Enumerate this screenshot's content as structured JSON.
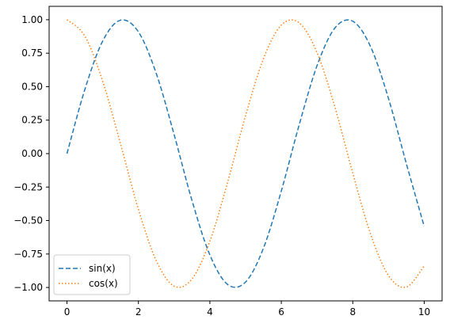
{
  "chart_data": {
    "type": "line",
    "title": "",
    "xlabel": "",
    "ylabel": "",
    "xlim": [
      -0.5,
      10.5
    ],
    "ylim": [
      -1.1,
      1.1
    ],
    "grid": false,
    "legend_position": "lower-left",
    "x_ticks": [
      0,
      2,
      4,
      6,
      8,
      10
    ],
    "x_tick_labels": [
      "0",
      "2",
      "4",
      "6",
      "8",
      "10"
    ],
    "y_ticks": [
      -1.0,
      -0.75,
      -0.5,
      -0.25,
      0.0,
      0.25,
      0.5,
      0.75,
      1.0
    ],
    "y_tick_labels": [
      "−1.00",
      "−0.75",
      "−0.50",
      "−0.25",
      "0.00",
      "0.25",
      "0.50",
      "0.75",
      "1.00"
    ],
    "x": [
      0,
      0.5,
      1,
      1.5,
      2,
      2.5,
      3,
      3.5,
      4,
      4.5,
      5,
      5.5,
      6,
      6.5,
      7,
      7.5,
      8,
      8.5,
      9,
      9.5,
      10
    ],
    "series": [
      {
        "name": "sin(x)",
        "color": "#1f77b4",
        "style": "dashed",
        "values": [
          0.0,
          0.479,
          0.841,
          0.997,
          0.909,
          0.598,
          0.141,
          -0.351,
          -0.757,
          -0.978,
          -0.959,
          -0.706,
          -0.279,
          0.215,
          0.657,
          0.938,
          0.989,
          0.798,
          0.412,
          -0.075,
          -0.544
        ]
      },
      {
        "name": "cos(x)",
        "color": "#ff7f0e",
        "style": "dotted",
        "values": [
          1.0,
          0.878,
          0.54,
          0.071,
          -0.416,
          -0.801,
          -0.99,
          -0.936,
          -0.654,
          -0.211,
          0.284,
          0.709,
          0.96,
          0.977,
          0.754,
          0.347,
          -0.146,
          -0.602,
          -0.911,
          -0.997,
          -0.839
        ]
      }
    ]
  }
}
